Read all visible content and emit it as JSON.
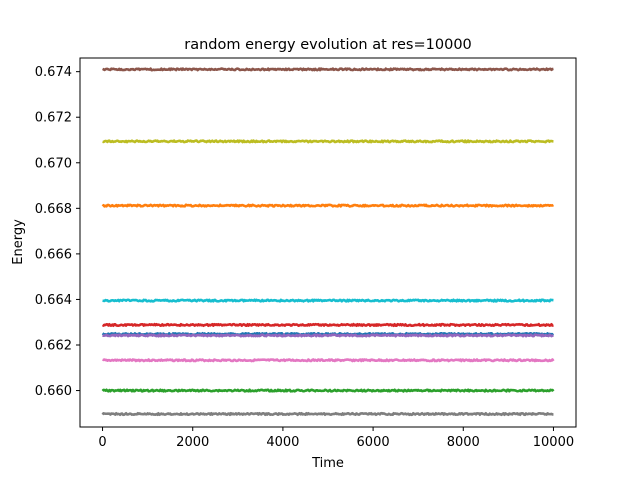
{
  "chart_data": {
    "type": "line",
    "title": "random energy evolution at res=10000",
    "xlabel": "Time",
    "ylabel": "Energy",
    "xlim": [
      -500,
      10500
    ],
    "ylim": [
      0.6584,
      0.6746
    ],
    "xticks": [
      0,
      2000,
      4000,
      6000,
      8000,
      10000
    ],
    "xtick_labels": [
      "0",
      "2000",
      "4000",
      "6000",
      "8000",
      "10000"
    ],
    "yticks": [
      0.66,
      0.662,
      0.664,
      0.666,
      0.668,
      0.67,
      0.672,
      0.674
    ],
    "ytick_labels": [
      "0.660",
      "0.662",
      "0.664",
      "0.666",
      "0.668",
      "0.670",
      "0.672",
      "0.674"
    ],
    "x_range": [
      0,
      10000
    ],
    "grid": false,
    "legend": "none",
    "series": [
      {
        "color": "#1f77b4",
        "y": 0.66248
      },
      {
        "color": "#ff7f0e",
        "y": 0.66812
      },
      {
        "color": "#2ca02c",
        "y": 0.66
      },
      {
        "color": "#d62728",
        "y": 0.66288
      },
      {
        "color": "#9467bd",
        "y": 0.66242
      },
      {
        "color": "#8c564b",
        "y": 0.6741
      },
      {
        "color": "#e377c2",
        "y": 0.66133
      },
      {
        "color": "#7f7f7f",
        "y": 0.65897
      },
      {
        "color": "#bcbd22",
        "y": 0.67094
      },
      {
        "color": "#17becf",
        "y": 0.66395
      }
    ]
  }
}
